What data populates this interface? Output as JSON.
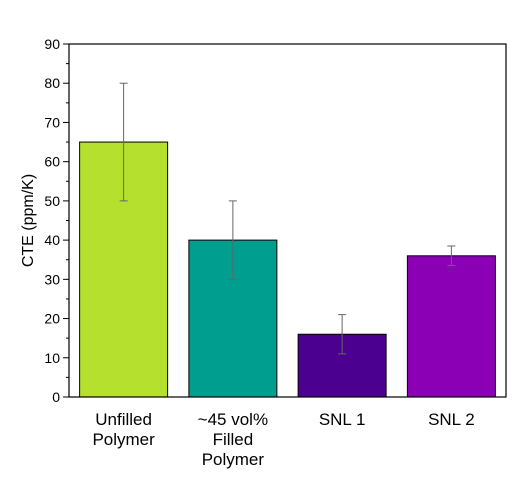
{
  "chart_data": {
    "type": "bar",
    "title": "",
    "xlabel": "",
    "ylabel": "CTE (ppm/K)",
    "ylim": [
      0,
      90
    ],
    "yticks": [
      0,
      10,
      20,
      30,
      40,
      50,
      60,
      70,
      80,
      90
    ],
    "grid": false,
    "categories": [
      [
        "Unfilled",
        "Polymer"
      ],
      [
        "~45 vol%",
        "Filled",
        "Polymer"
      ],
      [
        "SNL 1"
      ],
      [
        "SNL 2"
      ]
    ],
    "values": [
      65,
      40,
      16,
      36
    ],
    "error_low": [
      50,
      30,
      11,
      33.5
    ],
    "error_high": [
      80,
      50,
      21,
      38.5
    ],
    "colors": [
      "#b5e12e",
      "#009e8e",
      "#4b0090",
      "#8b00b5"
    ]
  }
}
